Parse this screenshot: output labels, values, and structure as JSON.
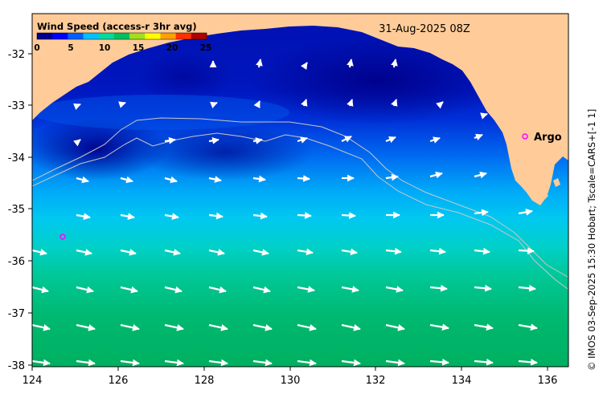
{
  "map": {
    "title_date": "31-Aug-2025 08Z",
    "legend": {
      "title": "Wind Speed (access-r 3hr avg)",
      "ticks": [
        "0",
        "5",
        "10",
        "15",
        "20",
        "25"
      ],
      "colors": [
        "#00008f",
        "#0000ff",
        "#0060ff",
        "#00c0ff",
        "#00d9a0",
        "#00c060",
        "#a0e020",
        "#ffff00",
        "#ffa000",
        "#ff3000",
        "#b00000"
      ]
    },
    "x_ticks": [
      "124",
      "126",
      "128",
      "130",
      "132",
      "134",
      "136"
    ],
    "y_ticks": [
      "-32",
      "-33",
      "-34",
      "-35",
      "-36",
      "-37",
      "-38"
    ],
    "x_range": [
      124,
      136.5
    ],
    "y_range": [
      -38.1,
      -31.25
    ],
    "float_label": "Argo",
    "credit": "© IMOS 03-Sep-2025 15:30 Hobart; Tscale=CARS+[-1 1]",
    "colors": {
      "land": "#ffcc99",
      "contour": "#c8c8c8",
      "arrows": "#ffffff",
      "float_marker": "#ff00ff"
    }
  }
}
